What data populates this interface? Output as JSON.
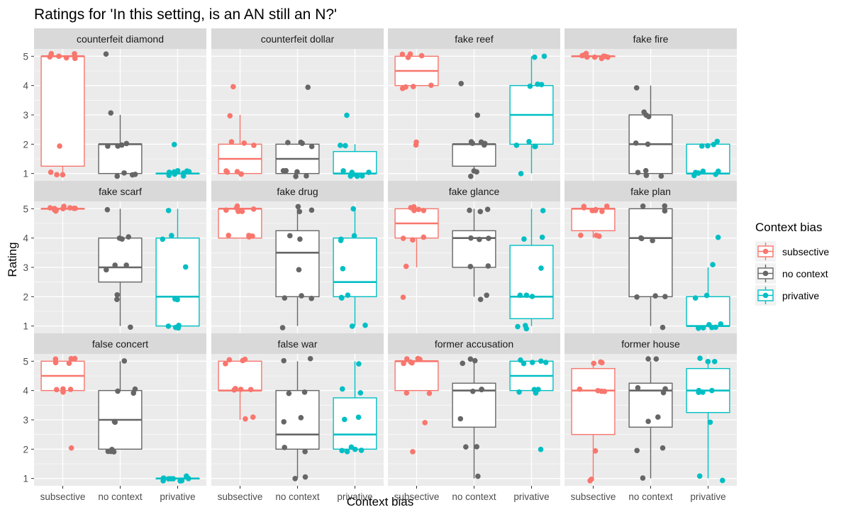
{
  "chart_data": {
    "type": "boxplot",
    "title": "Ratings for 'In this setting, is an AN still an N?'",
    "xlabel": "Context bias",
    "ylabel": "Rating",
    "categories": [
      "subsective",
      "no context",
      "privative"
    ],
    "ylim": [
      0.75,
      5.25
    ],
    "yticks": [
      1,
      2,
      3,
      4,
      5
    ],
    "grid": true,
    "legend": {
      "title": "Context bias",
      "position": "right",
      "entries": [
        "subsective",
        "no context",
        "privative"
      ]
    },
    "colors": {
      "subsective": "#F8766D",
      "no context": "#666666",
      "privative": "#00BFC4"
    },
    "facets": [
      {
        "label": "counterfeit diamond",
        "groups": [
          {
            "box": [
              1.0,
              1.25,
              5.0,
              5.0,
              5.0
            ],
            "points": [
              5,
              5,
              5,
              5,
              5,
              5,
              2,
              1,
              1,
              1
            ]
          },
          {
            "box": [
              1.0,
              1.0,
              2.0,
              2.0,
              3.0
            ],
            "points": [
              5,
              3,
              2,
              2,
              2,
              2,
              1,
              1,
              1,
              1
            ]
          },
          {
            "box": [
              1.0,
              1.0,
              1.0,
              1.0,
              1.0
            ],
            "points": [
              2,
              1,
              1,
              1,
              1,
              1,
              1,
              1,
              1,
              1
            ]
          }
        ]
      },
      {
        "label": "counterfeit dollar",
        "groups": [
          {
            "box": [
              1.0,
              1.0,
              1.5,
              2.0,
              3.0
            ],
            "points": [
              4,
              3,
              2,
              2,
              2,
              1,
              1,
              1,
              1,
              1
            ]
          },
          {
            "box": [
              1.0,
              1.0,
              1.5,
              2.0,
              2.0
            ],
            "points": [
              4,
              2,
              2,
              2,
              2,
              1,
              1,
              1,
              1,
              1
            ]
          },
          {
            "box": [
              1.0,
              1.0,
              1.0,
              1.75,
              2.0
            ],
            "points": [
              3,
              2,
              2,
              1,
              1,
              1,
              1,
              1,
              1,
              1
            ]
          }
        ]
      },
      {
        "label": "fake reef",
        "groups": [
          {
            "box": [
              4.0,
              4.0,
              4.5,
              5.0,
              5.0
            ],
            "points": [
              5,
              5,
              5,
              5,
              4,
              4,
              4,
              4,
              2,
              2
            ]
          },
          {
            "box": [
              1.0,
              1.25,
              2.0,
              2.0,
              2.0
            ],
            "points": [
              4,
              3,
              2,
              2,
              2,
              2,
              2,
              1,
              1,
              1
            ]
          },
          {
            "box": [
              1.0,
              2.0,
              3.0,
              4.0,
              5.0
            ],
            "points": [
              5,
              5,
              4,
              4,
              4,
              2,
              2,
              2,
              2,
              1
            ]
          }
        ]
      },
      {
        "label": "fake fire",
        "groups": [
          {
            "box": [
              5.0,
              5.0,
              5.0,
              5.0,
              5.0
            ],
            "points": [
              5,
              5,
              5,
              5,
              5,
              5,
              5,
              5,
              5,
              5
            ]
          },
          {
            "box": [
              1.0,
              1.0,
              2.0,
              3.0,
              4.0
            ],
            "points": [
              4,
              3,
              3,
              3,
              2,
              2,
              1,
              1,
              1,
              1
            ]
          },
          {
            "box": [
              1.0,
              1.0,
              1.0,
              2.0,
              2.0
            ],
            "points": [
              2,
              2,
              2,
              2,
              1,
              1,
              1,
              1,
              1,
              1
            ]
          }
        ]
      },
      {
        "label": "fake scarf",
        "groups": [
          {
            "box": [
              5.0,
              5.0,
              5.0,
              5.0,
              5.0
            ],
            "points": [
              5,
              5,
              5,
              5,
              5,
              5,
              5,
              5,
              5,
              5
            ]
          },
          {
            "box": [
              1.0,
              2.5,
              3.0,
              4.0,
              5.0
            ],
            "points": [
              5,
              4,
              4,
              4,
              3,
              3,
              3,
              2,
              2,
              1
            ]
          },
          {
            "box": [
              1.0,
              1.0,
              2.0,
              4.0,
              5.0
            ],
            "points": [
              5,
              4,
              4,
              3,
              2,
              2,
              1,
              1,
              1,
              1
            ]
          }
        ]
      },
      {
        "label": "fake drug",
        "groups": [
          {
            "box": [
              4.0,
              4.0,
              5.0,
              5.0,
              5.0
            ],
            "points": [
              5,
              5,
              5,
              5,
              5,
              5,
              4,
              4,
              4,
              4
            ]
          },
          {
            "box": [
              1.0,
              2.0,
              3.5,
              4.25,
              5.0
            ],
            "points": [
              5,
              5,
              5,
              4,
              4,
              3,
              2,
              2,
              2,
              1
            ]
          },
          {
            "box": [
              1.0,
              2.0,
              2.5,
              4.0,
              5.0
            ],
            "points": [
              5,
              4,
              4,
              4,
              3,
              2,
              2,
              2,
              1,
              1
            ]
          }
        ]
      },
      {
        "label": "fake glance",
        "groups": [
          {
            "box": [
              3.0,
              4.0,
              4.5,
              5.0,
              5.0
            ],
            "points": [
              5,
              5,
              5,
              5,
              5,
              4,
              4,
              4,
              3,
              2
            ]
          },
          {
            "box": [
              2.0,
              3.0,
              4.0,
              4.25,
              5.0
            ],
            "points": [
              5,
              5,
              5,
              4,
              4,
              4,
              3,
              3,
              2,
              2
            ]
          },
          {
            "box": [
              1.0,
              1.25,
              2.0,
              3.75,
              5.0
            ],
            "points": [
              5,
              4,
              4,
              3,
              2,
              2,
              2,
              1,
              1,
              1
            ]
          }
        ]
      },
      {
        "label": "fake plan",
        "groups": [
          {
            "box": [
              4.0,
              4.25,
              5.0,
              5.0,
              5.0
            ],
            "points": [
              5,
              5,
              5,
              5,
              5,
              5,
              5,
              4,
              4,
              4
            ]
          },
          {
            "box": [
              1.0,
              2.0,
              4.0,
              5.0,
              5.0
            ],
            "points": [
              5,
              5,
              5,
              4,
              4,
              4,
              2,
              2,
              2,
              1
            ]
          },
          {
            "box": [
              1.0,
              1.0,
              1.0,
              2.0,
              3.0
            ],
            "points": [
              4,
              3,
              2,
              2,
              1,
              1,
              1,
              1,
              1,
              1
            ]
          }
        ]
      },
      {
        "label": "false concert",
        "groups": [
          {
            "box": [
              4.0,
              4.0,
              4.5,
              5.0,
              5.0
            ],
            "points": [
              5,
              5,
              5,
              5,
              5,
              4,
              4,
              4,
              4,
              2
            ]
          },
          {
            "box": [
              2.0,
              2.0,
              3.0,
              4.0,
              5.0
            ],
            "points": [
              5,
              4,
              4,
              4,
              3,
              3,
              2,
              2,
              2,
              2
            ]
          },
          {
            "box": [
              1.0,
              1.0,
              1.0,
              1.0,
              1.0
            ],
            "points": [
              1,
              1,
              1,
              1,
              1,
              1,
              1,
              1,
              1,
              1
            ]
          }
        ]
      },
      {
        "label": "false war",
        "groups": [
          {
            "box": [
              3.0,
              4.0,
              4.0,
              5.0,
              5.0
            ],
            "points": [
              5,
              5,
              5,
              5,
              4,
              4,
              4,
              4,
              3,
              3
            ]
          },
          {
            "box": [
              1.0,
              2.0,
              2.5,
              4.0,
              5.0
            ],
            "points": [
              5,
              5,
              4,
              4,
              3,
              3,
              2,
              2,
              1,
              1
            ]
          },
          {
            "box": [
              2.0,
              2.0,
              2.5,
              3.75,
              5.0
            ],
            "points": [
              5,
              4,
              4,
              3,
              3,
              2,
              2,
              2,
              2,
              2
            ]
          }
        ]
      },
      {
        "label": "former accusation",
        "groups": [
          {
            "box": [
              4.0,
              4.0,
              5.0,
              5.0,
              5.0
            ],
            "points": [
              5,
              5,
              5,
              5,
              5,
              5,
              4,
              4,
              3,
              2
            ]
          },
          {
            "box": [
              1.0,
              2.75,
              4.0,
              4.25,
              5.0
            ],
            "points": [
              5,
              5,
              5,
              4,
              4,
              4,
              3,
              2,
              2,
              1
            ]
          },
          {
            "box": [
              4.0,
              4.0,
              4.5,
              5.0,
              5.0
            ],
            "points": [
              5,
              5,
              5,
              5,
              5,
              4,
              4,
              4,
              4,
              2
            ]
          }
        ]
      },
      {
        "label": "former house",
        "groups": [
          {
            "box": [
              1.0,
              2.5,
              4.0,
              4.75,
              5.0
            ],
            "points": [
              5,
              5,
              5,
              4,
              4,
              4,
              4,
              2,
              1,
              1
            ]
          },
          {
            "box": [
              1.0,
              2.75,
              4.0,
              4.25,
              5.0
            ],
            "points": [
              5,
              5,
              4,
              4,
              4,
              3,
              3,
              2,
              2,
              1
            ]
          },
          {
            "box": [
              1.0,
              3.25,
              4.0,
              4.75,
              5.0
            ],
            "points": [
              5,
              5,
              5,
              4,
              4,
              4,
              4,
              3,
              1,
              1
            ]
          }
        ]
      }
    ]
  }
}
